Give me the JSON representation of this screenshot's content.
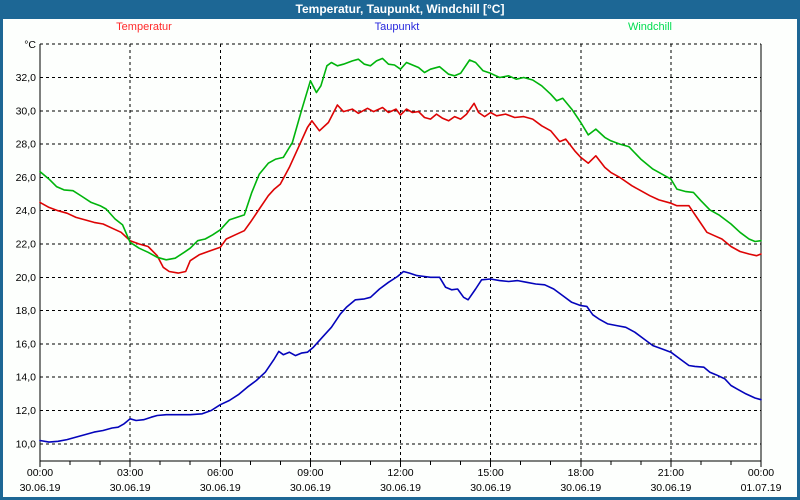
{
  "header": {
    "title": "Temperatur, Taupunkt, Windchill [°C]"
  },
  "legend": {
    "items": [
      {
        "label": "Temperatur",
        "color": "#ff2a2a"
      },
      {
        "label": "Taupunkt",
        "color": "#2828dd"
      },
      {
        "label": "Windchill",
        "color": "#00dd50"
      }
    ]
  },
  "colors": {
    "titlebar": "#1d6795",
    "window_border": "#1d6795",
    "plot_background": "#fdfffd",
    "gridline": "#000000",
    "temperatur_line": "#dd0404",
    "taupunkt_line": "#0404bb",
    "windchill_line": "#00b40c"
  },
  "chart_data": {
    "type": "line",
    "title": "Temperatur, Taupunkt, Windchill [°C]",
    "unit_label": "°C",
    "grid": "dashed",
    "legend_position": "top",
    "x_axis": {
      "range_hours": [
        0,
        24
      ],
      "major_tick_interval_hours": 3,
      "minor_tick_interval_hours": 1,
      "ticks": [
        {
          "time": "00:00",
          "date": "30.06.19"
        },
        {
          "time": "03:00",
          "date": "30.06.19"
        },
        {
          "time": "06:00",
          "date": "30.06.19"
        },
        {
          "time": "09:00",
          "date": "30.06.19"
        },
        {
          "time": "12:00",
          "date": "30.06.19"
        },
        {
          "time": "15:00",
          "date": "30.06.19"
        },
        {
          "time": "18:00",
          "date": "30.06.19"
        },
        {
          "time": "21:00",
          "date": "30.06.19"
        },
        {
          "time": "00:00",
          "date": "01.07.19"
        }
      ]
    },
    "y_axis": {
      "range": [
        9,
        34
      ],
      "grid_values": [
        34,
        32,
        30,
        28,
        26,
        24,
        22,
        20,
        18,
        16,
        14,
        12,
        10
      ],
      "tick_values": [
        32,
        30,
        28,
        26,
        24,
        22,
        20,
        18,
        16,
        14,
        12,
        10
      ],
      "tick_labels": [
        "32,0",
        "30,0",
        "28,0",
        "26,0",
        "24,0",
        "22,0",
        "20,0",
        "18,0",
        "16,0",
        "14,0",
        "12,0",
        "10,0"
      ]
    },
    "series": [
      {
        "name": "Temperatur",
        "color": "#dd0404",
        "points": [
          [
            0,
            24.5
          ],
          [
            0.3,
            24.2
          ],
          [
            0.6,
            24.0
          ],
          [
            0.9,
            23.85
          ],
          [
            1.2,
            23.6
          ],
          [
            1.5,
            23.45
          ],
          [
            1.8,
            23.3
          ],
          [
            2.1,
            23.2
          ],
          [
            2.4,
            22.95
          ],
          [
            2.7,
            22.7
          ],
          [
            3.0,
            22.2
          ],
          [
            3.3,
            22.0
          ],
          [
            3.6,
            21.85
          ],
          [
            3.9,
            21.3
          ],
          [
            4.1,
            20.6
          ],
          [
            4.3,
            20.35
          ],
          [
            4.6,
            20.25
          ],
          [
            4.85,
            20.35
          ],
          [
            5.0,
            21.0
          ],
          [
            5.3,
            21.35
          ],
          [
            5.6,
            21.55
          ],
          [
            6.0,
            21.8
          ],
          [
            6.2,
            22.3
          ],
          [
            6.5,
            22.55
          ],
          [
            6.8,
            22.8
          ],
          [
            7.0,
            23.3
          ],
          [
            7.3,
            24.1
          ],
          [
            7.6,
            24.9
          ],
          [
            7.8,
            25.3
          ],
          [
            8.0,
            25.6
          ],
          [
            8.3,
            26.6
          ],
          [
            8.6,
            27.8
          ],
          [
            8.9,
            29.0
          ],
          [
            9.05,
            29.4
          ],
          [
            9.3,
            28.8
          ],
          [
            9.6,
            29.3
          ],
          [
            9.9,
            30.35
          ],
          [
            10.1,
            29.95
          ],
          [
            10.4,
            30.1
          ],
          [
            10.6,
            29.85
          ],
          [
            10.9,
            30.15
          ],
          [
            11.1,
            29.95
          ],
          [
            11.4,
            30.2
          ],
          [
            11.6,
            29.9
          ],
          [
            11.85,
            30.1
          ],
          [
            12.0,
            29.75
          ],
          [
            12.2,
            30.1
          ],
          [
            12.4,
            29.9
          ],
          [
            12.6,
            29.95
          ],
          [
            12.8,
            29.6
          ],
          [
            13.0,
            29.5
          ],
          [
            13.2,
            29.8
          ],
          [
            13.4,
            29.55
          ],
          [
            13.6,
            29.4
          ],
          [
            13.8,
            29.65
          ],
          [
            14.0,
            29.5
          ],
          [
            14.2,
            29.8
          ],
          [
            14.45,
            30.45
          ],
          [
            14.6,
            29.9
          ],
          [
            14.8,
            29.65
          ],
          [
            15.0,
            29.9
          ],
          [
            15.2,
            29.7
          ],
          [
            15.5,
            29.8
          ],
          [
            15.8,
            29.6
          ],
          [
            16.1,
            29.65
          ],
          [
            16.4,
            29.5
          ],
          [
            16.7,
            29.1
          ],
          [
            17.0,
            28.8
          ],
          [
            17.3,
            28.15
          ],
          [
            17.5,
            28.3
          ],
          [
            17.8,
            27.6
          ],
          [
            18.0,
            27.2
          ],
          [
            18.25,
            26.85
          ],
          [
            18.5,
            27.3
          ],
          [
            18.8,
            26.6
          ],
          [
            19.0,
            26.3
          ],
          [
            19.3,
            26.0
          ],
          [
            19.7,
            25.5
          ],
          [
            20.0,
            25.2
          ],
          [
            20.3,
            24.9
          ],
          [
            20.6,
            24.65
          ],
          [
            21.0,
            24.45
          ],
          [
            21.2,
            24.3
          ],
          [
            21.6,
            24.3
          ],
          [
            21.9,
            23.5
          ],
          [
            22.2,
            22.7
          ],
          [
            22.45,
            22.5
          ],
          [
            22.7,
            22.3
          ],
          [
            23.0,
            21.85
          ],
          [
            23.3,
            21.55
          ],
          [
            23.6,
            21.4
          ],
          [
            23.85,
            21.3
          ],
          [
            24.0,
            21.4
          ]
        ]
      },
      {
        "name": "Taupunkt",
        "color": "#0404bb",
        "points": [
          [
            0,
            10.2
          ],
          [
            0.3,
            10.1
          ],
          [
            0.6,
            10.15
          ],
          [
            0.9,
            10.25
          ],
          [
            1.2,
            10.4
          ],
          [
            1.5,
            10.55
          ],
          [
            1.8,
            10.7
          ],
          [
            2.1,
            10.8
          ],
          [
            2.4,
            10.95
          ],
          [
            2.6,
            11.0
          ],
          [
            2.8,
            11.2
          ],
          [
            3.0,
            11.5
          ],
          [
            3.2,
            11.4
          ],
          [
            3.45,
            11.45
          ],
          [
            3.7,
            11.6
          ],
          [
            3.9,
            11.7
          ],
          [
            4.2,
            11.75
          ],
          [
            4.6,
            11.75
          ],
          [
            5.0,
            11.75
          ],
          [
            5.4,
            11.8
          ],
          [
            5.7,
            12.0
          ],
          [
            6.0,
            12.35
          ],
          [
            6.3,
            12.6
          ],
          [
            6.6,
            12.95
          ],
          [
            6.9,
            13.4
          ],
          [
            7.2,
            13.8
          ],
          [
            7.5,
            14.3
          ],
          [
            7.8,
            15.1
          ],
          [
            7.95,
            15.55
          ],
          [
            8.1,
            15.35
          ],
          [
            8.3,
            15.5
          ],
          [
            8.5,
            15.3
          ],
          [
            8.7,
            15.45
          ],
          [
            8.9,
            15.5
          ],
          [
            9.1,
            15.8
          ],
          [
            9.4,
            16.4
          ],
          [
            9.7,
            17.0
          ],
          [
            10.0,
            17.8
          ],
          [
            10.2,
            18.2
          ],
          [
            10.5,
            18.65
          ],
          [
            10.8,
            18.7
          ],
          [
            11.0,
            18.8
          ],
          [
            11.3,
            19.3
          ],
          [
            11.6,
            19.7
          ],
          [
            11.9,
            20.05
          ],
          [
            12.1,
            20.35
          ],
          [
            12.3,
            20.25
          ],
          [
            12.55,
            20.1
          ],
          [
            12.8,
            20.05
          ],
          [
            13.0,
            20.0
          ],
          [
            13.3,
            20.0
          ],
          [
            13.5,
            19.4
          ],
          [
            13.7,
            19.25
          ],
          [
            13.9,
            19.3
          ],
          [
            14.1,
            18.8
          ],
          [
            14.25,
            18.65
          ],
          [
            14.5,
            19.3
          ],
          [
            14.7,
            19.85
          ],
          [
            15.0,
            19.9
          ],
          [
            15.3,
            19.8
          ],
          [
            15.6,
            19.75
          ],
          [
            15.9,
            19.8
          ],
          [
            16.2,
            19.7
          ],
          [
            16.5,
            19.6
          ],
          [
            16.8,
            19.55
          ],
          [
            17.1,
            19.3
          ],
          [
            17.4,
            18.9
          ],
          [
            17.7,
            18.5
          ],
          [
            18.0,
            18.3
          ],
          [
            18.2,
            18.25
          ],
          [
            18.4,
            17.75
          ],
          [
            18.6,
            17.5
          ],
          [
            18.9,
            17.2
          ],
          [
            19.2,
            17.1
          ],
          [
            19.5,
            17.0
          ],
          [
            19.8,
            16.7
          ],
          [
            20.1,
            16.3
          ],
          [
            20.4,
            15.9
          ],
          [
            20.7,
            15.7
          ],
          [
            21.0,
            15.5
          ],
          [
            21.3,
            15.1
          ],
          [
            21.6,
            14.7
          ],
          [
            21.8,
            14.65
          ],
          [
            22.1,
            14.6
          ],
          [
            22.3,
            14.3
          ],
          [
            22.5,
            14.15
          ],
          [
            22.8,
            13.9
          ],
          [
            23.0,
            13.5
          ],
          [
            23.2,
            13.3
          ],
          [
            23.5,
            13.0
          ],
          [
            23.8,
            12.75
          ],
          [
            24.0,
            12.65
          ]
        ]
      },
      {
        "name": "Windchill",
        "color": "#00b40c",
        "points": [
          [
            0,
            26.35
          ],
          [
            0.3,
            25.9
          ],
          [
            0.55,
            25.45
          ],
          [
            0.8,
            25.25
          ],
          [
            1.1,
            25.2
          ],
          [
            1.4,
            24.85
          ],
          [
            1.7,
            24.5
          ],
          [
            2.0,
            24.3
          ],
          [
            2.2,
            24.1
          ],
          [
            2.5,
            23.5
          ],
          [
            2.75,
            23.15
          ],
          [
            3.0,
            22.1
          ],
          [
            3.3,
            21.75
          ],
          [
            3.6,
            21.5
          ],
          [
            3.9,
            21.2
          ],
          [
            4.2,
            21.05
          ],
          [
            4.5,
            21.15
          ],
          [
            4.8,
            21.5
          ],
          [
            5.0,
            21.75
          ],
          [
            5.25,
            22.2
          ],
          [
            5.5,
            22.3
          ],
          [
            5.75,
            22.55
          ],
          [
            6.0,
            22.85
          ],
          [
            6.3,
            23.45
          ],
          [
            6.55,
            23.6
          ],
          [
            6.8,
            23.75
          ],
          [
            7.05,
            25.1
          ],
          [
            7.3,
            26.2
          ],
          [
            7.6,
            26.85
          ],
          [
            7.85,
            27.1
          ],
          [
            8.1,
            27.2
          ],
          [
            8.4,
            28.1
          ],
          [
            8.7,
            30.0
          ],
          [
            9.0,
            31.8
          ],
          [
            9.2,
            31.1
          ],
          [
            9.35,
            31.5
          ],
          [
            9.55,
            32.7
          ],
          [
            9.7,
            32.9
          ],
          [
            9.9,
            32.7
          ],
          [
            10.1,
            32.8
          ],
          [
            10.4,
            33.0
          ],
          [
            10.6,
            33.1
          ],
          [
            10.8,
            32.8
          ],
          [
            11.0,
            32.7
          ],
          [
            11.2,
            33.0
          ],
          [
            11.4,
            33.15
          ],
          [
            11.6,
            32.8
          ],
          [
            11.8,
            32.75
          ],
          [
            12.0,
            32.5
          ],
          [
            12.2,
            32.9
          ],
          [
            12.4,
            32.75
          ],
          [
            12.6,
            32.6
          ],
          [
            12.8,
            32.3
          ],
          [
            13.0,
            32.5
          ],
          [
            13.3,
            32.65
          ],
          [
            13.6,
            32.2
          ],
          [
            13.8,
            32.1
          ],
          [
            14.0,
            32.25
          ],
          [
            14.3,
            33.05
          ],
          [
            14.5,
            32.9
          ],
          [
            14.75,
            32.4
          ],
          [
            15.0,
            32.25
          ],
          [
            15.3,
            32.0
          ],
          [
            15.6,
            32.1
          ],
          [
            15.85,
            31.9
          ],
          [
            16.1,
            32.0
          ],
          [
            16.4,
            31.85
          ],
          [
            16.7,
            31.5
          ],
          [
            17.0,
            31.0
          ],
          [
            17.2,
            30.6
          ],
          [
            17.4,
            30.75
          ],
          [
            17.7,
            30.1
          ],
          [
            18.0,
            29.3
          ],
          [
            18.25,
            28.55
          ],
          [
            18.5,
            28.9
          ],
          [
            18.8,
            28.4
          ],
          [
            19.0,
            28.2
          ],
          [
            19.3,
            28.0
          ],
          [
            19.6,
            27.85
          ],
          [
            20.0,
            27.1
          ],
          [
            20.4,
            26.5
          ],
          [
            20.7,
            26.2
          ],
          [
            21.0,
            25.9
          ],
          [
            21.2,
            25.3
          ],
          [
            21.5,
            25.15
          ],
          [
            21.75,
            25.1
          ],
          [
            22.0,
            24.6
          ],
          [
            22.3,
            24.05
          ],
          [
            22.6,
            23.75
          ],
          [
            23.0,
            23.2
          ],
          [
            23.3,
            22.7
          ],
          [
            23.6,
            22.3
          ],
          [
            23.8,
            22.15
          ],
          [
            24.0,
            22.2
          ]
        ]
      }
    ]
  }
}
